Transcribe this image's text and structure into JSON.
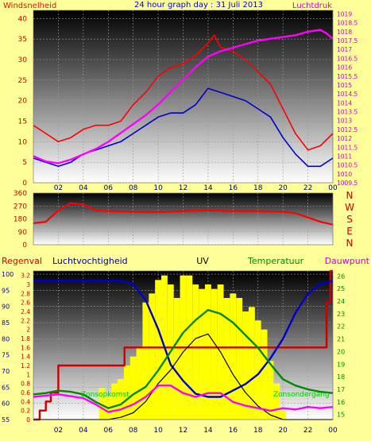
{
  "page": {
    "background": "#ffff99"
  },
  "chart_data": [
    {
      "type": "line",
      "title": "24 hour graph day : 31 Juli 2013",
      "ylabel": "Windsnelheid",
      "y2label": "Luchtdruk",
      "ylim": [
        0,
        42
      ],
      "y2lim": [
        1009.5,
        1019.2
      ],
      "yticks": [
        "0",
        "5",
        "10",
        "15",
        "20",
        "25",
        "30",
        "35",
        "40"
      ],
      "y2ticks": [
        "1009.5",
        "1010",
        "1010.5",
        "1011",
        "1011.5",
        "1012",
        "1012.5",
        "1013",
        "1013.5",
        "1014",
        "1014.5",
        "1015",
        "1015.5",
        "1016",
        "1016.5",
        "1017",
        "1017.5",
        "1018",
        "1018.5",
        "1019"
      ],
      "xticks": [
        "02",
        "04",
        "06",
        "08",
        "10",
        "12",
        "14",
        "16",
        "18",
        "20",
        "22",
        "00"
      ],
      "xlim": [
        0,
        24
      ],
      "grid": true,
      "series": [
        {
          "name": "",
          "axis": "left",
          "color": "#ff0000",
          "x": [
            0,
            1,
            2,
            3,
            4,
            5,
            6,
            7,
            8,
            9,
            10,
            11,
            12,
            13,
            14,
            14.5,
            15,
            16,
            17,
            18,
            19,
            20,
            21,
            22,
            23,
            24
          ],
          "values": [
            14,
            12,
            10,
            11,
            13,
            14,
            14,
            15,
            19,
            22,
            26,
            28,
            29,
            31,
            34,
            36,
            33,
            32,
            30,
            27,
            24,
            18,
            12,
            8,
            9,
            12
          ]
        },
        {
          "name": "",
          "axis": "left",
          "color": "#0000cc",
          "x": [
            0,
            1,
            2,
            3,
            4,
            5,
            6,
            7,
            8,
            9,
            10,
            11,
            12,
            13,
            14,
            15,
            16,
            17,
            18,
            19,
            20,
            21,
            22,
            23,
            24
          ],
          "values": [
            6,
            5,
            4,
            5,
            7,
            8,
            9,
            10,
            12,
            14,
            16,
            17,
            17,
            19,
            23,
            22,
            21,
            20,
            18,
            16,
            11,
            7,
            4,
            4,
            6
          ]
        },
        {
          "name": "",
          "axis": "right",
          "color": "#ff00ff",
          "x": [
            0,
            1,
            2,
            3,
            4,
            5,
            6,
            7,
            8,
            9,
            10,
            11,
            12,
            13,
            14,
            15,
            16,
            17,
            18,
            19,
            20,
            21,
            22,
            23,
            23.5,
            24
          ],
          "values": [
            1011.0,
            1010.7,
            1010.6,
            1010.8,
            1011.1,
            1011.4,
            1011.8,
            1012.3,
            1012.8,
            1013.3,
            1013.9,
            1014.6,
            1015.3,
            1016.0,
            1016.6,
            1016.9,
            1017.1,
            1017.3,
            1017.5,
            1017.6,
            1017.7,
            1017.8,
            1018.0,
            1018.1,
            1017.9,
            1017.6
          ]
        }
      ]
    },
    {
      "type": "line",
      "ylim": [
        0,
        360
      ],
      "yticks": [
        "0",
        "90",
        "180",
        "270",
        "360"
      ],
      "y2ticks": [
        "N",
        "W",
        "S",
        "E",
        "N"
      ],
      "xlim": [
        0,
        24
      ],
      "grid": true,
      "series": [
        {
          "name": "",
          "color": "#ff0000",
          "x": [
            0,
            1,
            2,
            3,
            4,
            5,
            6,
            8,
            10,
            12,
            14,
            16,
            18,
            20,
            21,
            22,
            23,
            24
          ],
          "values": [
            150,
            160,
            240,
            290,
            280,
            240,
            235,
            230,
            228,
            235,
            240,
            235,
            235,
            230,
            220,
            190,
            160,
            140
          ]
        }
      ]
    },
    {
      "type": "line",
      "legend": [
        "Regenval",
        "Luchtvochtigheid",
        "UV",
        "Temperatuur",
        "Dauwpunt"
      ],
      "yticks": [
        "55",
        "60",
        "65",
        "70",
        "75",
        "80",
        "85",
        "90",
        "95",
        "100"
      ],
      "ylim": [
        55,
        101
      ],
      "y2ticks": [
        "0",
        "0.2",
        "0.4",
        "0.6",
        "0.8",
        "1",
        "1.2",
        "1.4",
        "1.6",
        "1.8",
        "2",
        "2.2",
        "2.4",
        "2.6",
        "2.8",
        "3",
        "3.2"
      ],
      "y2lim": [
        0,
        3.3
      ],
      "y3ticks": [
        "15",
        "16",
        "17",
        "18",
        "19",
        "20",
        "21",
        "22",
        "23",
        "24",
        "25",
        "26"
      ],
      "y3lim": [
        14.6,
        26.4
      ],
      "xticks": [
        "02",
        "04",
        "06",
        "08",
        "10",
        "12",
        "14",
        "16",
        "18",
        "20",
        "22",
        "00"
      ],
      "xlim": [
        0,
        24
      ],
      "annotations": [
        "Zonsopkomst",
        "Zonsondergang"
      ],
      "grid": true,
      "series": [
        {
          "name": "Regenval",
          "axis": "rain",
          "color": "#cc0000",
          "x": [
            0,
            0.5,
            1.0,
            1.4,
            2.0,
            7.0,
            7.3,
            12.0,
            20.5,
            21.5,
            23.5,
            23.8,
            24
          ],
          "values": [
            0,
            0.2,
            0.4,
            0.6,
            1.2,
            1.2,
            1.6,
            1.6,
            1.6,
            1.6,
            2.6,
            3.3,
            3.3
          ]
        },
        {
          "name": "Luchtvochtigheid",
          "axis": "left",
          "color": "#0000cc",
          "x": [
            0,
            4,
            7,
            8,
            9,
            10,
            11,
            12,
            13,
            14,
            15,
            16,
            17,
            18,
            19,
            20,
            21,
            22,
            23,
            24
          ],
          "values": [
            98,
            98,
            98,
            97,
            92,
            83,
            72,
            67,
            63,
            62,
            62,
            64,
            66,
            69,
            74,
            80,
            88,
            94,
            97,
            98
          ]
        },
        {
          "name": "UV",
          "axis": "uvline",
          "color": "#000000",
          "x": [
            0,
            6,
            7,
            8,
            9,
            10,
            11,
            12,
            13,
            14,
            15,
            16,
            17,
            18,
            19,
            20,
            24
          ],
          "values": [
            0,
            0,
            0.05,
            0.15,
            0.4,
            0.8,
            1.1,
            1.5,
            1.8,
            1.9,
            1.5,
            1.0,
            0.6,
            0.3,
            0.1,
            0,
            0
          ]
        },
        {
          "name": "Temperatuur",
          "axis": "right",
          "color": "#008800",
          "x": [
            0,
            1,
            2,
            3,
            4,
            5,
            6,
            7,
            8,
            9,
            10,
            11,
            12,
            13,
            14,
            15,
            16,
            17,
            18,
            19,
            20,
            21,
            22,
            23,
            24
          ],
          "values": [
            16.6,
            16.7,
            16.9,
            16.8,
            16.6,
            16.0,
            15.5,
            15.8,
            16.6,
            17.2,
            18.5,
            20.0,
            21.5,
            22.5,
            23.3,
            23.0,
            22.3,
            21.3,
            20.3,
            19.0,
            17.8,
            17.3,
            17.0,
            16.8,
            16.7
          ]
        },
        {
          "name": "Dauwpunt",
          "axis": "right",
          "color": "#ff00ff",
          "x": [
            0,
            2,
            4,
            5,
            6,
            7,
            8,
            9,
            10,
            11,
            12,
            13,
            14,
            15,
            16,
            17,
            18,
            19,
            20,
            21,
            22,
            23,
            24
          ],
          "values": [
            16.4,
            16.6,
            16.3,
            15.8,
            15.2,
            15.4,
            15.8,
            16.4,
            17.3,
            17.3,
            16.7,
            16.4,
            16.7,
            16.7,
            16.0,
            15.7,
            15.5,
            15.3,
            15.5,
            15.4,
            15.6,
            15.5,
            15.6
          ]
        },
        {
          "name": "",
          "axis": "uvbars",
          "type": "bar",
          "color": "#ffff00",
          "x": [
            5.5,
            6.0,
            6.5,
            7.0,
            7.5,
            8.0,
            8.5,
            9.0,
            9.5,
            10.0,
            10.5,
            11.0,
            11.5,
            12.0,
            12.5,
            13.0,
            13.5,
            14.0,
            14.5,
            15.0,
            15.5,
            16.0,
            16.5,
            17.0,
            17.5,
            18.0,
            18.5,
            19.0,
            19.5,
            20.0
          ],
          "values": [
            0.7,
            0.5,
            0.8,
            0.9,
            1.2,
            1.4,
            1.6,
            2.6,
            2.8,
            3.1,
            3.2,
            3.0,
            2.7,
            3.2,
            3.2,
            3.0,
            2.9,
            3.0,
            2.9,
            3.0,
            2.7,
            2.8,
            2.7,
            2.4,
            2.5,
            2.2,
            2.0,
            1.3,
            0.8,
            0.2
          ]
        }
      ]
    }
  ]
}
